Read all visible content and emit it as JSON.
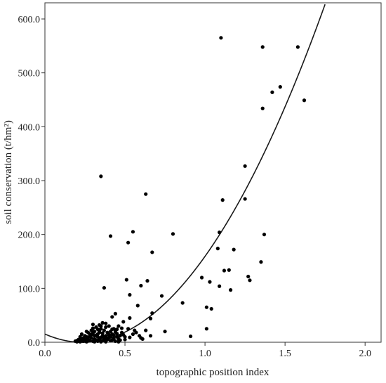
{
  "chart_data": {
    "type": "scatter",
    "xlabel": "topographic position index",
    "ylabel": "soil conservation (t/hm²)",
    "xlim": [
      0.0,
      2.1
    ],
    "ylim": [
      0.0,
      630.0
    ],
    "xticks": [
      "0.0",
      "0.5",
      "1.0",
      "1.5",
      "2.0"
    ],
    "xtick_values": [
      0.0,
      0.5,
      1.0,
      1.5,
      2.0
    ],
    "yticks": [
      "0.0",
      "100.0",
      "200.0",
      "300.0",
      "400.0",
      "500.0",
      "600.0"
    ],
    "ytick_values": [
      0,
      100,
      200,
      300,
      400,
      500,
      600
    ],
    "grid": false,
    "points": [
      [
        1.1,
        565
      ],
      [
        1.36,
        548
      ],
      [
        1.58,
        548
      ],
      [
        1.47,
        474
      ],
      [
        1.42,
        464
      ],
      [
        1.36,
        434
      ],
      [
        1.62,
        449
      ],
      [
        0.35,
        308
      ],
      [
        0.63,
        275
      ],
      [
        1.25,
        327
      ],
      [
        1.11,
        264
      ],
      [
        1.25,
        266
      ],
      [
        0.55,
        205
      ],
      [
        0.41,
        197
      ],
      [
        0.8,
        201
      ],
      [
        1.09,
        204
      ],
      [
        1.37,
        200
      ],
      [
        0.52,
        185
      ],
      [
        0.67,
        167
      ],
      [
        1.08,
        174
      ],
      [
        1.18,
        172
      ],
      [
        1.35,
        149
      ],
      [
        1.12,
        133
      ],
      [
        1.15,
        134
      ],
      [
        1.27,
        122
      ],
      [
        1.28,
        115
      ],
      [
        0.51,
        116
      ],
      [
        0.98,
        120
      ],
      [
        1.03,
        112
      ],
      [
        0.6,
        105
      ],
      [
        0.64,
        114
      ],
      [
        0.37,
        101
      ],
      [
        1.09,
        104
      ],
      [
        1.16,
        97
      ],
      [
        0.73,
        86
      ],
      [
        0.53,
        88
      ],
      [
        0.86,
        73
      ],
      [
        1.01,
        65
      ],
      [
        1.04,
        62
      ],
      [
        0.58,
        68
      ],
      [
        0.67,
        54
      ],
      [
        0.44,
        53
      ],
      [
        0.42,
        47
      ],
      [
        0.53,
        45
      ],
      [
        0.66,
        44
      ],
      [
        1.01,
        25
      ],
      [
        0.91,
        11
      ],
      [
        0.75,
        20
      ],
      [
        0.63,
        22
      ],
      [
        0.57,
        18
      ],
      [
        0.49,
        38
      ],
      [
        0.5,
        10
      ],
      [
        0.6,
        8
      ],
      [
        0.66,
        12
      ],
      [
        0.46,
        30
      ],
      [
        0.38,
        35
      ],
      [
        0.4,
        30
      ],
      [
        0.3,
        33
      ],
      [
        0.32,
        28
      ],
      [
        0.35,
        25
      ],
      [
        0.44,
        22
      ],
      [
        0.48,
        18
      ],
      [
        0.42,
        15
      ],
      [
        0.36,
        12
      ],
      [
        0.33,
        10
      ],
      [
        0.29,
        8
      ],
      [
        0.27,
        5
      ],
      [
        0.25,
        4
      ],
      [
        0.23,
        3
      ],
      [
        0.21,
        2
      ],
      [
        0.2,
        1
      ],
      [
        0.22,
        6
      ],
      [
        0.24,
        2
      ],
      [
        0.26,
        10
      ],
      [
        0.28,
        15
      ],
      [
        0.31,
        20
      ],
      [
        0.34,
        18
      ],
      [
        0.37,
        8
      ],
      [
        0.39,
        5
      ],
      [
        0.41,
        3
      ],
      [
        0.43,
        7
      ],
      [
        0.45,
        10
      ],
      [
        0.47,
        4
      ],
      [
        0.3,
        2
      ],
      [
        0.32,
        4
      ],
      [
        0.34,
        6
      ],
      [
        0.36,
        3
      ],
      [
        0.38,
        1
      ],
      [
        0.26,
        1
      ],
      [
        0.28,
        3
      ],
      [
        0.25,
        12
      ],
      [
        0.27,
        18
      ],
      [
        0.29,
        22
      ],
      [
        0.31,
        12
      ],
      [
        0.33,
        15
      ],
      [
        0.35,
        30
      ],
      [
        0.37,
        22
      ],
      [
        0.39,
        18
      ],
      [
        0.41,
        10
      ],
      [
        0.43,
        25
      ],
      [
        0.45,
        16
      ],
      [
        0.47,
        12
      ],
      [
        0.52,
        25
      ],
      [
        0.55,
        15
      ],
      [
        0.5,
        5
      ],
      [
        0.24,
        8
      ],
      [
        0.22,
        10
      ],
      [
        0.21,
        5
      ],
      [
        0.19,
        2
      ],
      [
        0.23,
        15
      ],
      [
        0.26,
        20
      ],
      [
        0.3,
        26
      ],
      [
        0.34,
        32
      ],
      [
        0.38,
        28
      ],
      [
        0.42,
        24
      ],
      [
        0.36,
        36
      ],
      [
        0.33,
        24
      ],
      [
        0.29,
        14
      ],
      [
        0.27,
        9
      ],
      [
        0.31,
        6
      ],
      [
        0.35,
        9
      ],
      [
        0.4,
        14
      ],
      [
        0.44,
        19
      ],
      [
        0.48,
        26
      ],
      [
        0.46,
        6
      ],
      [
        0.49,
        14
      ],
      [
        0.53,
        9
      ],
      [
        0.56,
        22
      ],
      [
        0.59,
        12
      ],
      [
        0.61,
        6
      ],
      [
        0.2,
        3
      ],
      [
        0.22,
        1
      ],
      [
        0.24,
        5
      ],
      [
        0.26,
        6
      ],
      [
        0.28,
        11
      ],
      [
        0.3,
        17
      ],
      [
        0.32,
        13
      ],
      [
        0.34,
        21
      ],
      [
        0.36,
        17
      ],
      [
        0.38,
        12
      ],
      [
        0.4,
        9
      ],
      [
        0.42,
        4
      ],
      [
        0.44,
        2
      ],
      [
        0.46,
        1
      ],
      [
        0.31,
        1
      ],
      [
        0.33,
        2
      ],
      [
        0.35,
        1
      ],
      [
        0.37,
        4
      ],
      [
        0.39,
        7
      ],
      [
        0.41,
        20
      ],
      [
        0.43,
        13
      ],
      [
        0.45,
        24
      ]
    ],
    "fit_curve": {
      "type": "quadratic",
      "coefficients": {
        "a": 274.0,
        "b": -129.8,
        "c": 15.2
      }
    }
  }
}
